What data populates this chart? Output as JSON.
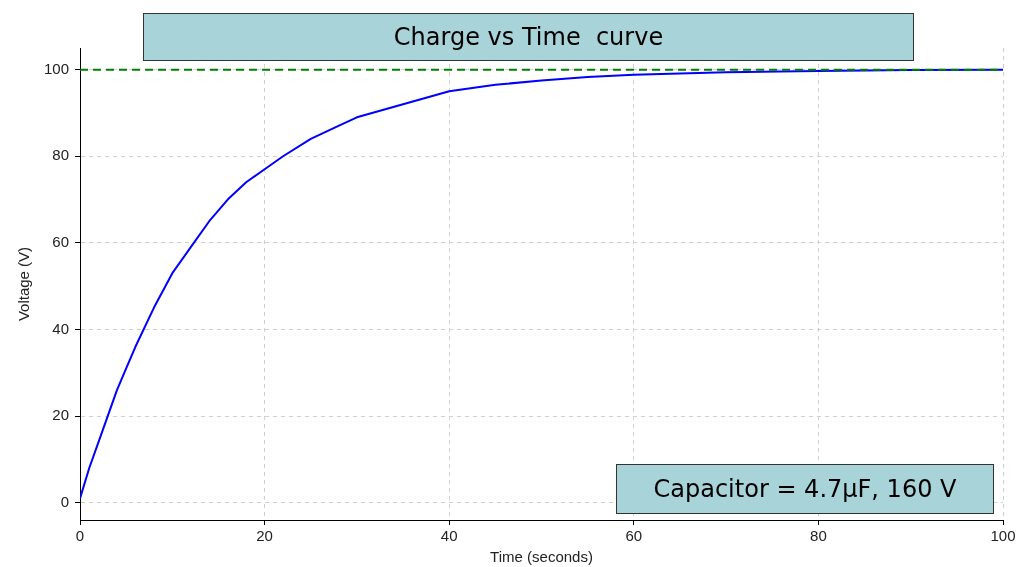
{
  "chart_data": {
    "type": "line",
    "title": "Charge vs Time  curve",
    "xlabel": "Time (seconds)",
    "ylabel": "Voltage (V)",
    "x": [
      0,
      1,
      2,
      3,
      4,
      5,
      6,
      8,
      10,
      12,
      14,
      16,
      18,
      20,
      22,
      25,
      28,
      30,
      35,
      40,
      45,
      50,
      55,
      60,
      70,
      80,
      90,
      100
    ],
    "series": [
      {
        "color": "#0000ff",
        "values": [
          1,
          8,
          14,
          20,
          26,
          31,
          36,
          45,
          53,
          59,
          65,
          70,
          74,
          77,
          80,
          84,
          87,
          89,
          92,
          95,
          96.5,
          97.5,
          98.3,
          98.8,
          99.4,
          99.7,
          99.9,
          100
        ]
      }
    ],
    "xlim": [
      0,
      100
    ],
    "ylim": [
      -4,
      105
    ],
    "xticks": [
      0,
      20,
      40,
      60,
      80,
      100
    ],
    "yticks": [
      0,
      20,
      40,
      60,
      80,
      100
    ],
    "ref_lines": [
      {
        "axis": "y",
        "value": 100,
        "color": "#008000",
        "line_style": "dashed"
      }
    ],
    "annotations": [
      "Capacitor = 4.7μF, 160 V"
    ],
    "grid": true,
    "legend": false,
    "marker": "none",
    "line_style": "solid"
  }
}
